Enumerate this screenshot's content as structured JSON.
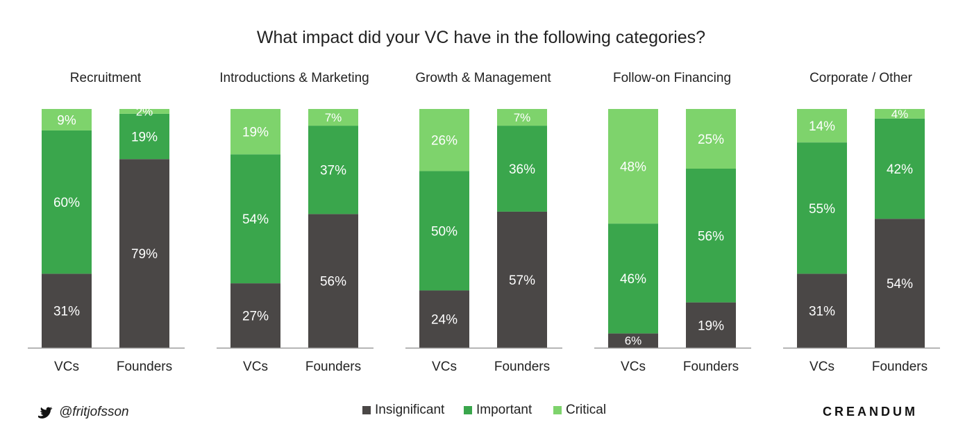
{
  "title": "What impact did your VC have in the following categories?",
  "footer": {
    "handle": "@fritjofsson",
    "brand": "CREANDUM",
    "twitter_icon": "twitter-bird-icon"
  },
  "colors": {
    "insignificant": "#4a4746",
    "important": "#3aa64c",
    "critical": "#7ed36c",
    "axis": "#9a9a9a",
    "text": "#222222",
    "bar_label": "#ffffff"
  },
  "chart_data": {
    "type": "bar",
    "stacked": true,
    "title": "What impact did your VC have in the following categories?",
    "legend": {
      "position": "bottom-center",
      "entries": [
        "Insignificant",
        "Important",
        "Critical"
      ]
    },
    "panels": [
      {
        "title": "Recruitment",
        "categories": [
          "VCs",
          "Founders"
        ],
        "series": [
          {
            "name": "Insignificant",
            "values": [
              31,
              79
            ]
          },
          {
            "name": "Important",
            "values": [
              60,
              19
            ]
          },
          {
            "name": "Critical",
            "values": [
              9,
              2
            ]
          }
        ]
      },
      {
        "title": "Introductions & Marketing",
        "categories": [
          "VCs",
          "Founders"
        ],
        "series": [
          {
            "name": "Insignificant",
            "values": [
              27,
              56
            ]
          },
          {
            "name": "Important",
            "values": [
              54,
              37
            ]
          },
          {
            "name": "Critical",
            "values": [
              19,
              7
            ]
          }
        ]
      },
      {
        "title": "Growth & Management",
        "categories": [
          "VCs",
          "Founders"
        ],
        "series": [
          {
            "name": "Insignificant",
            "values": [
              24,
              57
            ]
          },
          {
            "name": "Important",
            "values": [
              50,
              36
            ]
          },
          {
            "name": "Critical",
            "values": [
              26,
              7
            ]
          }
        ]
      },
      {
        "title": "Follow-on Financing",
        "categories": [
          "VCs",
          "Founders"
        ],
        "series": [
          {
            "name": "Insignificant",
            "values": [
              6,
              19
            ]
          },
          {
            "name": "Important",
            "values": [
              46,
              56
            ]
          },
          {
            "name": "Critical",
            "values": [
              48,
              25
            ]
          }
        ]
      },
      {
        "title": "Corporate / Other",
        "categories": [
          "VCs",
          "Founders"
        ],
        "series": [
          {
            "name": "Insignificant",
            "values": [
              31,
              54
            ]
          },
          {
            "name": "Important",
            "values": [
              55,
              42
            ]
          },
          {
            "name": "Critical",
            "values": [
              14,
              4
            ]
          }
        ]
      }
    ]
  }
}
